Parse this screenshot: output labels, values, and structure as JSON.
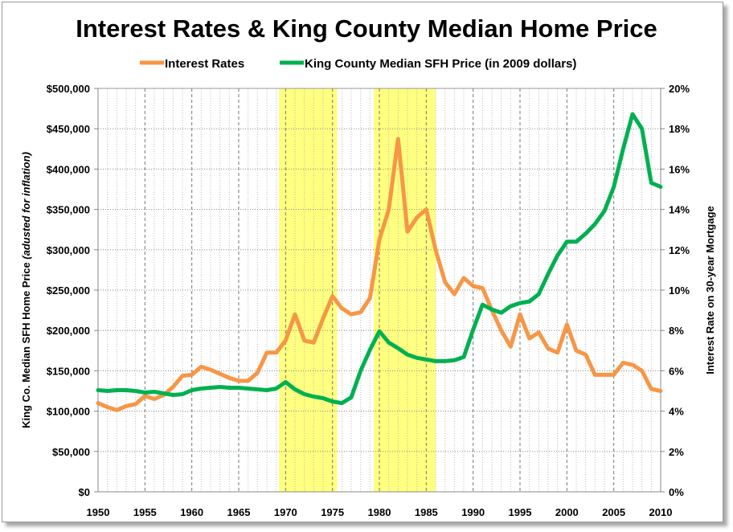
{
  "chart_data": {
    "type": "line",
    "title": "Interest Rates & King County Median Home Price",
    "ylabel_left_main": "King Co. Median SFH Home Price ",
    "ylabel_left_italic": "(adusted for inflation)",
    "ylabel_right": "Interest Rate on 30-year Mortgage",
    "legend_position": "top",
    "grid": true,
    "x_range": [
      1950,
      2010
    ],
    "x_ticks": [
      "1950",
      "1955",
      "1960",
      "1965",
      "1970",
      "1975",
      "1980",
      "1985",
      "1990",
      "1995",
      "2000",
      "2005",
      "2010"
    ],
    "y_left_range": [
      0,
      500000
    ],
    "y_left_ticks": [
      "$0",
      "$50,000",
      "$100,000",
      "$150,000",
      "$200,000",
      "$250,000",
      "$300,000",
      "$350,000",
      "$400,000",
      "$450,000",
      "$500,000"
    ],
    "y_right_range": [
      0,
      20
    ],
    "y_right_ticks": [
      "0%",
      "2%",
      "4%",
      "6%",
      "8%",
      "10%",
      "12%",
      "14%",
      "16%",
      "18%",
      "20%"
    ],
    "shaded_periods": [
      [
        1969.3,
        1975.5
      ],
      [
        1979.4,
        1986.0
      ]
    ],
    "shade_color": "#ffff80",
    "x": [
      1950,
      1951,
      1952,
      1953,
      1954,
      1955,
      1956,
      1957,
      1958,
      1959,
      1960,
      1961,
      1962,
      1963,
      1964,
      1965,
      1966,
      1967,
      1968,
      1969,
      1970,
      1971,
      1972,
      1973,
      1974,
      1975,
      1976,
      1977,
      1978,
      1979,
      1980,
      1981,
      1982,
      1983,
      1984,
      1985,
      1986,
      1987,
      1988,
      1989,
      1990,
      1991,
      1992,
      1993,
      1994,
      1995,
      1996,
      1997,
      1998,
      1999,
      2000,
      2001,
      2002,
      2003,
      2004,
      2005,
      2006,
      2007,
      2008,
      2009,
      2010
    ],
    "series": [
      {
        "name": "Interest Rates",
        "axis": "right",
        "color": "#f79646",
        "values": [
          4.4,
          4.2,
          4.05,
          4.25,
          4.35,
          4.75,
          4.6,
          4.8,
          5.2,
          5.75,
          5.8,
          6.2,
          6.05,
          5.85,
          5.65,
          5.5,
          5.5,
          5.9,
          6.9,
          6.9,
          7.5,
          8.8,
          7.5,
          7.4,
          8.6,
          9.7,
          9.1,
          8.8,
          8.9,
          9.6,
          12.5,
          14.0,
          17.5,
          12.9,
          13.6,
          14.0,
          12.0,
          10.4,
          9.8,
          10.6,
          10.2,
          10.1,
          9.0,
          8.0,
          7.2,
          8.8,
          7.6,
          7.9,
          7.1,
          6.9,
          8.3,
          7.0,
          6.8,
          5.8,
          5.8,
          5.8,
          6.4,
          6.3,
          6.0,
          5.1,
          5.0
        ]
      },
      {
        "name": "King County Median SFH Price (in 2009 dollars)",
        "axis": "left",
        "color": "#00b050",
        "values": [
          126000,
          125000,
          126000,
          126000,
          125000,
          123000,
          124000,
          122000,
          120000,
          121000,
          126000,
          128000,
          129000,
          130000,
          129000,
          129000,
          128000,
          127000,
          126000,
          128000,
          136000,
          127000,
          121000,
          118000,
          116000,
          112000,
          110000,
          117000,
          150000,
          176000,
          199000,
          185000,
          178000,
          170000,
          166000,
          164000,
          162000,
          162000,
          163000,
          167000,
          201000,
          232000,
          226000,
          222000,
          230000,
          234000,
          236000,
          245000,
          270000,
          293000,
          310000,
          310000,
          320000,
          332000,
          348000,
          378000,
          425000,
          468000,
          450000,
          383000,
          378000
        ]
      }
    ]
  }
}
